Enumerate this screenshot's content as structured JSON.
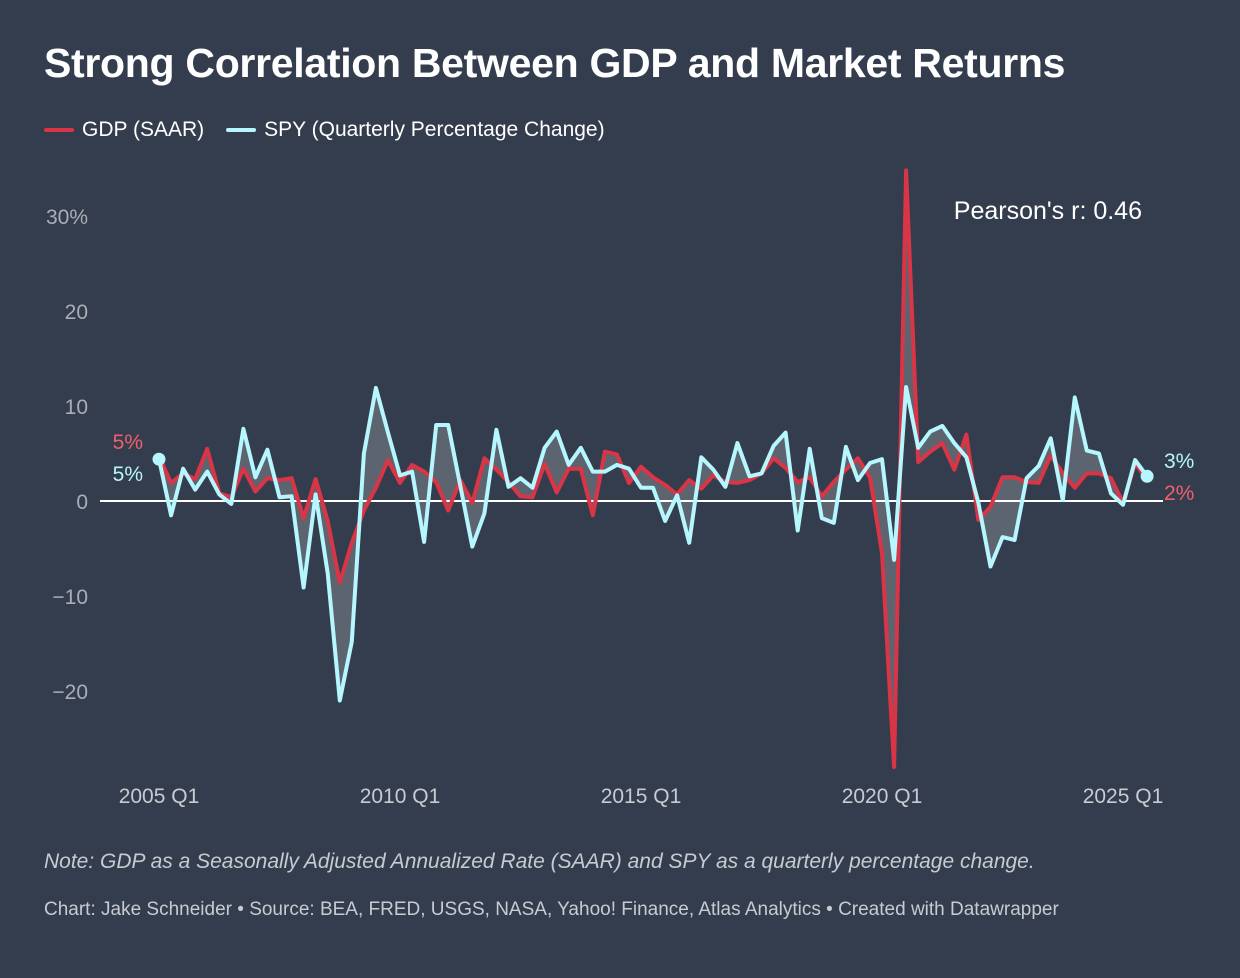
{
  "title": "Strong Correlation Between GDP and Market Returns",
  "legend": [
    {
      "label": "GDP (SAAR)",
      "color": "#d93547"
    },
    {
      "label": "SPY (Quarterly Percentage Change)",
      "color": "#b5f6ff"
    }
  ],
  "annotation": "Pearson's r: 0.46",
  "note": "Note: GDP as a Seasonally Adjusted Annualized Rate (SAAR) and SPY as a quarterly percentage change.",
  "credits": "Chart: Jake Schneider • Source: BEA, FRED, USGS, NASA, Yahoo! Finance, Atlas Analytics • Created with Datawrapper",
  "chart_data": {
    "type": "line",
    "title": "Strong Correlation Between GDP and Market Returns",
    "xlabel": "",
    "ylabel": "",
    "x_start": "2005 Q1",
    "x_end": "2025 Q3",
    "num_quarters": 83,
    "x_ticks": [
      {
        "label": "2005 Q1",
        "index": 0
      },
      {
        "label": "2010 Q1",
        "index": 20
      },
      {
        "label": "2015 Q1",
        "index": 40
      },
      {
        "label": "2020 Q1",
        "index": 60
      },
      {
        "label": "2025 Q1",
        "index": 80
      }
    ],
    "y_ticks": [
      {
        "label": "30%",
        "value": 30
      },
      {
        "label": "20",
        "value": 20
      },
      {
        "label": "10",
        "value": 10
      },
      {
        "label": "0",
        "value": 0
      },
      {
        "label": "−10",
        "value": -10
      },
      {
        "label": "−20",
        "value": -20
      }
    ],
    "ylim": [
      -29,
      36
    ],
    "grid": false,
    "zero_line": true,
    "fill_between_color": "#5f6672",
    "series": [
      {
        "name": "GDP (SAAR)",
        "color": "#d93547",
        "label_color": "#f0606a",
        "start_label": "5%",
        "end_label": "2%",
        "values": [
          4.7,
          1.9,
          2.9,
          2.3,
          5.5,
          0.8,
          0.4,
          3.4,
          1.0,
          2.4,
          2.2,
          2.4,
          -1.8,
          2.3,
          -2.1,
          -8.6,
          -4.4,
          -1.0,
          1.4,
          4.3,
          1.9,
          3.8,
          3.1,
          2.0,
          -1.0,
          2.2,
          -0.2,
          4.5,
          3.3,
          2.0,
          0.5,
          0.4,
          3.9,
          0.9,
          3.4,
          3.4,
          -1.5,
          5.2,
          4.9,
          1.9,
          3.6,
          2.5,
          1.7,
          0.7,
          2.2,
          1.3,
          2.7,
          2.0,
          1.9,
          2.2,
          2.9,
          4.5,
          3.5,
          2.0,
          2.5,
          0.5,
          2.0,
          3.3,
          4.5,
          2.5,
          -5.5,
          -28.0,
          34.8,
          4.1,
          5.2,
          6.1,
          3.3,
          7.0,
          -2.0,
          -0.6,
          2.5,
          2.5,
          2.0,
          1.9,
          4.8,
          2.9,
          1.4,
          2.9,
          2.9,
          2.4,
          -0.2,
          4.0,
          2.2
        ]
      },
      {
        "name": "SPY (Quarterly Percentage Change)",
        "color": "#b5f6ff",
        "label_color": "#b5f6ff",
        "start_label": "5%",
        "end_label": "3%",
        "values": [
          4.4,
          -1.5,
          3.4,
          1.2,
          3.1,
          0.7,
          -0.3,
          7.6,
          2.5,
          5.4,
          0.4,
          0.5,
          -9.1,
          0.7,
          -7.6,
          -21.0,
          -14.8,
          5.0,
          11.9,
          7.2,
          2.7,
          3.1,
          -4.3,
          8.0,
          8.0,
          1.6,
          -4.8,
          -1.3,
          7.5,
          1.5,
          2.4,
          1.4,
          5.6,
          7.3,
          3.8,
          5.6,
          3.1,
          3.1,
          3.8,
          3.4,
          1.4,
          1.4,
          -2.1,
          0.6,
          -4.4,
          4.6,
          3.3,
          1.5,
          6.1,
          2.6,
          2.9,
          5.8,
          7.2,
          -3.1,
          5.5,
          -1.8,
          -2.3,
          5.7,
          2.2,
          4.0,
          4.4,
          -6.2,
          12.0,
          5.6,
          7.3,
          7.9,
          6.1,
          4.6,
          -0.2,
          -6.9,
          -3.8,
          -4.1,
          2.4,
          3.7,
          6.6,
          0.1,
          10.9,
          5.3,
          5.0,
          0.8,
          -0.4,
          4.3,
          2.6
        ]
      }
    ]
  }
}
